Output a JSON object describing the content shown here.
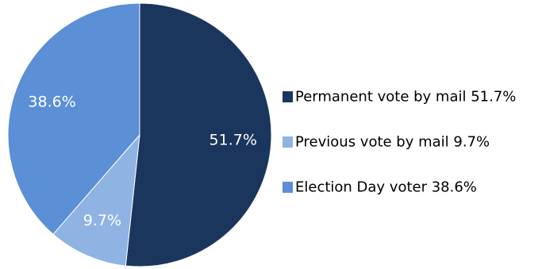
{
  "chart_data": {
    "type": "pie",
    "title": "",
    "legend_position": "right",
    "slices": [
      {
        "label": "Permanent vote by mail",
        "value": 51.7,
        "display": "51.7%",
        "color": "#1b365d",
        "label_color": "#ffffff"
      },
      {
        "label": "Previous vote by mail",
        "value": 9.7,
        "display": "9.7%",
        "color": "#8fb3e3",
        "label_color": "#000000"
      },
      {
        "label": "Election Day voter",
        "value": 38.6,
        "display": "38.6%",
        "color": "#5b8fd6",
        "label_color": "#ffffff"
      }
    ],
    "legend": [
      "Permanent vote by mail 51.7%",
      "Previous vote by mail 9.7%",
      "Election Day voter 38.6%"
    ]
  }
}
